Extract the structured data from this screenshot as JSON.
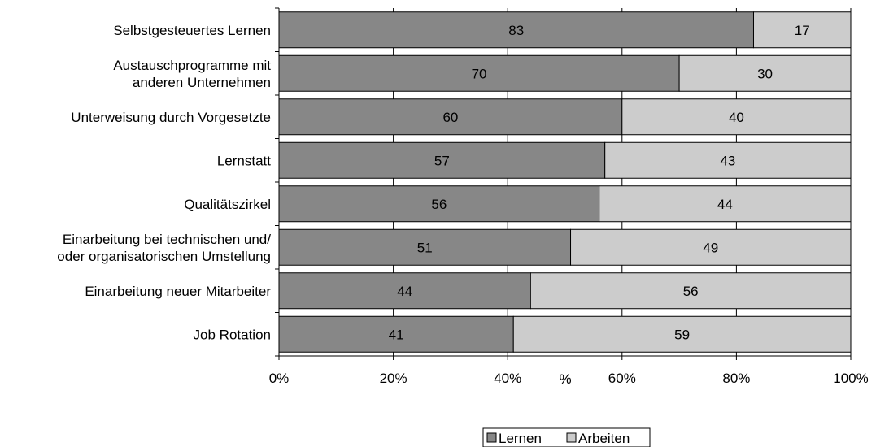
{
  "chart_data": {
    "type": "bar",
    "stacked": true,
    "orientation": "horizontal",
    "percent_scale": true,
    "categories": [
      "Selbstgesteuertes Lernen",
      "Austauschprogramme mit anderen Unternehmen",
      "Unterweisung durch Vorgesetzte",
      "Lernstatt",
      "Qualitätszirkel",
      "Einarbeitung bei technischen und/ oder organisatorischen Umstellung",
      "Einarbeitung neuer Mitarbeiter",
      "Job Rotation"
    ],
    "category_lines": [
      [
        "Selbstgesteuertes Lernen"
      ],
      [
        "Austauschprogramme mit",
        "anderen Unternehmen"
      ],
      [
        "Unterweisung durch Vorgesetzte"
      ],
      [
        "Lernstatt"
      ],
      [
        "Qualitätszirkel"
      ],
      [
        "Einarbeitung bei technischen und/",
        "oder organisatorischen Umstellung"
      ],
      [
        "Einarbeitung neuer Mitarbeiter"
      ],
      [
        "Job Rotation"
      ]
    ],
    "series": [
      {
        "name": "Lernen",
        "color": "#878787",
        "values": [
          83,
          70,
          60,
          57,
          56,
          51,
          44,
          41
        ]
      },
      {
        "name": "Arbeiten",
        "color": "#cccccc",
        "values": [
          17,
          30,
          40,
          43,
          44,
          49,
          56,
          59
        ]
      }
    ],
    "xlabel": "%",
    "xlim": [
      0,
      100
    ],
    "x_ticks": [
      0,
      20,
      40,
      60,
      80,
      100
    ],
    "x_tick_labels": [
      "0%",
      "20%",
      "40%",
      "60%",
      "80%",
      "100%"
    ],
    "grid": "vertical",
    "legend_position": "bottom"
  }
}
